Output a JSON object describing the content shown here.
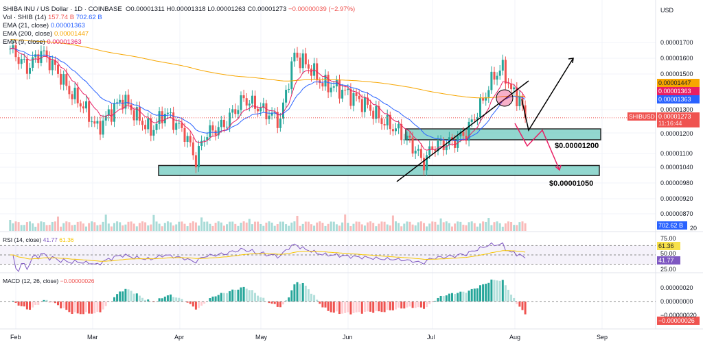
{
  "header": {
    "title": "SHIBA INU / US Dollar · 1D · COINBASE",
    "open": "O0.00001311",
    "high": "H0.00001318",
    "low": "L0.00001263",
    "close": "C0.00001273",
    "change": "−0.00000039 (−2.97%)",
    "currency": "USD"
  },
  "indicators": {
    "vol_label": "Vol · SHIB (14)",
    "vol_val1": "157.74 B",
    "vol_val2": "702.62 B",
    "ema21_label": "EMA (21, close)",
    "ema21_val": "0.00001363",
    "ema200_label": "EMA (200, close)",
    "ema200_val": "0.00001447",
    "ema9_label": "EMA (9, close)",
    "ema9_val": "0.00001363",
    "rsi_label": "RSI (14, close)",
    "rsi_val": "41.77",
    "rsi_ma": "61.36",
    "macd_label": "MACD (12, 26, close)",
    "macd_val": "−0.00000026"
  },
  "price_axis": [
    "0.00001700",
    "0.00001600",
    "0.00001500",
    "0.00001300",
    "0.00001200",
    "0.00001100",
    "0.00001040",
    "0.00000980",
    "0.00000920",
    "0.00000870"
  ],
  "tags": {
    "ema200": "0.00001447",
    "ema9": "0.00001363",
    "ema21": "0.00001363",
    "symbol": "SHIBUSD",
    "last": "0.00001273",
    "countdown": "11:16:44",
    "volume": "702.62 B",
    "vol_axis": "20",
    "rsi_ma": "61.36",
    "rsi": "41.77",
    "macd": "−0.00000026"
  },
  "rsi_axis": [
    "75.00",
    "50.00",
    "25.00"
  ],
  "macd_axis": [
    "0.00000020",
    "0.00000000",
    "−0.00000020"
  ],
  "months": [
    "Feb",
    "Mar",
    "Apr",
    "May",
    "Jun",
    "Jul",
    "Aug",
    "Sep"
  ],
  "annotations": {
    "support1": "$0.00001200",
    "support2": "$0.00001050"
  },
  "colors": {
    "up": "#26a69a",
    "down": "#ef5350",
    "ema200": "#f7a600",
    "ema21": "#2962ff",
    "ema9": "#e91e63",
    "rsi": "#7e57c2",
    "zone": "#7fd1c7"
  },
  "chart_data": {
    "type": "candlestick",
    "scale": "log",
    "ylim": [
      8.8e-06,
      1.78e-05
    ],
    "xlim": [
      "2024-01-30",
      "2024-09-06"
    ],
    "close_keypoints": [
      [
        "2024-01-30",
        1.66e-05
      ],
      [
        "2024-02-05",
        1.54e-05
      ],
      [
        "2024-02-10",
        1.64e-05
      ],
      [
        "2024-02-15",
        1.54e-05
      ],
      [
        "2024-02-20",
        1.41e-05
      ],
      [
        "2024-02-25",
        1.33e-05
      ],
      [
        "2024-03-01",
        1.22e-05
      ],
      [
        "2024-03-05",
        1.29e-05
      ],
      [
        "2024-03-10",
        1.37e-05
      ],
      [
        "2024-03-15",
        1.28e-05
      ],
      [
        "2024-03-20",
        1.21e-05
      ],
      [
        "2024-03-25",
        1.3e-05
      ],
      [
        "2024-04-01",
        1.2e-05
      ],
      [
        "2024-04-05",
        1.08e-05
      ],
      [
        "2024-04-08",
        1.19e-05
      ],
      [
        "2024-04-15",
        1.24e-05
      ],
      [
        "2024-04-22",
        1.37e-05
      ],
      [
        "2024-04-30",
        1.3e-05
      ],
      [
        "2024-05-05",
        1.26e-05
      ],
      [
        "2024-05-10",
        1.62e-05
      ],
      [
        "2024-05-15",
        1.55e-05
      ],
      [
        "2024-05-20",
        1.45e-05
      ],
      [
        "2024-05-25",
        1.43e-05
      ],
      [
        "2024-06-01",
        1.37e-05
      ],
      [
        "2024-06-05",
        1.33e-05
      ],
      [
        "2024-06-10",
        1.26e-05
      ],
      [
        "2024-06-15",
        1.22e-05
      ],
      [
        "2024-06-20",
        1.16e-05
      ],
      [
        "2024-06-25",
        1.07e-05
      ],
      [
        "2024-06-28",
        1.14e-05
      ],
      [
        "2024-07-05",
        1.16e-05
      ],
      [
        "2024-07-10",
        1.2e-05
      ],
      [
        "2024-07-15",
        1.33e-05
      ],
      [
        "2024-07-20",
        1.5e-05
      ],
      [
        "2024-07-23",
        1.54e-05
      ],
      [
        "2024-07-26",
        1.41e-05
      ],
      [
        "2024-07-29",
        1.37e-05
      ],
      [
        "2024-07-31",
        1.273e-05
      ]
    ],
    "support_zones": [
      [
        1.17e-05,
        1.22e-05
      ],
      [
        1.02e-05,
        1.06e-05
      ]
    ]
  }
}
